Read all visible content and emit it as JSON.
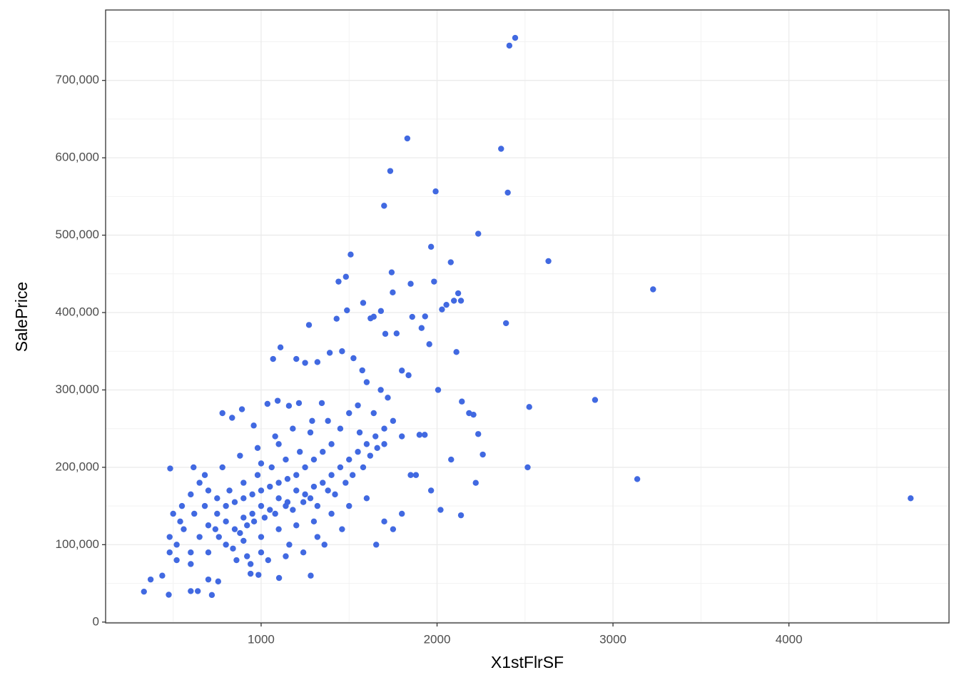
{
  "chart_data": {
    "type": "scatter",
    "x_label": "X1stFlrSF",
    "y_label": "SalePrice",
    "color": "#4169e1",
    "grid": true,
    "xlim": [
      116,
      4910
    ],
    "xticks": [
      1000,
      2000,
      3000,
      4000
    ],
    "xminorticks": [
      500,
      1500,
      2500,
      3500,
      4500
    ],
    "ylim": [
      -1105,
      791005
    ],
    "yticks": [
      0,
      {
        "value": 100000,
        "label": "100,000"
      },
      {
        "value": 200000,
        "label": "200,000"
      },
      {
        "value": 300000,
        "label": "300,000"
      },
      {
        "value": 400000,
        "label": "400,000"
      },
      {
        "value": 500000,
        "label": "500,000"
      },
      {
        "value": 600000,
        "label": "600,000"
      },
      {
        "value": 700000,
        "label": "700,000"
      }
    ],
    "yminorticks": [
      50000,
      150000,
      250000,
      350000,
      450000,
      550000,
      650000,
      750000
    ],
    "x": [
      2444,
      2411,
      1831,
      2364,
      1734,
      1992,
      2402,
      1699,
      2234,
      1509,
      2633,
      1966,
      2078,
      3228,
      1742,
      1482,
      1440,
      1983,
      1850,
      2120,
      1748,
      2096,
      2136,
      4692,
      3138,
      2898,
      2524,
      2515,
      2392,
      1488,
      1580,
      1681,
      1429,
      1640,
      1859,
      1272,
      2028,
      2053,
      1932,
      1912,
      1956,
      2207,
      2234,
      2260,
      2136,
      2020,
      2220,
      1966,
      2080,
      2141,
      2182,
      2110,
      2006,
      1838,
      1800,
      1770,
      1706,
      1622,
      1525,
      1575,
      1390,
      1110,
      1068,
      1200,
      1250,
      1320,
      1460,
      1654,
      1282,
      1102,
      985,
      940,
      720,
      475,
      334,
      372,
      438,
      600,
      640,
      700,
      756,
      483,
      616,
      780,
      835,
      891,
      958,
      1036,
      1094,
      1158,
      1215,
      1290,
      1345,
      520,
      560,
      600,
      650,
      700,
      750,
      800,
      850,
      900,
      950,
      1000,
      1050,
      1100,
      1150,
      1200,
      1250,
      1300,
      1350,
      1400,
      1450,
      1500,
      1550,
      1600,
      1650,
      1700,
      1750,
      1800,
      1850,
      1880,
      1900,
      1930,
      1550,
      1500,
      1450,
      1400,
      1350,
      1300,
      1250,
      1200,
      1150,
      1100,
      1050,
      1000,
      950,
      900,
      850,
      800,
      750,
      700,
      650,
      600,
      550,
      500,
      480,
      480,
      520,
      600,
      700,
      800,
      900,
      1000,
      1100,
      1200,
      1300,
      1400,
      1500,
      1600,
      1700,
      1750,
      1800,
      880,
      920,
      960,
      1020,
      1080,
      1140,
      1180,
      1240,
      1280,
      1320,
      1380,
      1420,
      1480,
      1520,
      1580,
      1620,
      1660,
      1700,
      1720,
      1680,
      1600,
      1640,
      1560,
      1380,
      1280,
      1180,
      1080,
      980,
      880,
      780,
      680,
      760,
      840,
      920,
      1000,
      1160,
      1320,
      1460,
      1240,
      1360,
      860,
      940,
      1040,
      1140,
      540,
      620,
      680,
      740,
      820,
      900,
      980,
      1060,
      1140,
      1220,
      1100,
      1000
    ],
    "values": [
      755000,
      745000,
      625000,
      611657,
      582933,
      556581,
      555000,
      538000,
      501837,
      475000,
      466500,
      485000,
      465000,
      430000,
      451950,
      446261,
      440000,
      440000,
      437154,
      424870,
      426000,
      415298,
      415298,
      160000,
      184750,
      287090,
      278000,
      200000,
      386250,
      402861,
      412500,
      402000,
      392000,
      394617,
      394432,
      383970,
      404000,
      410000,
      395000,
      380000,
      359100,
      268000,
      243000,
      216500,
      138000,
      145000,
      179900,
      170000,
      210000,
      285000,
      270000,
      349000,
      300000,
      319000,
      325000,
      373000,
      372500,
      392500,
      341000,
      325300,
      348000,
      355000,
      340000,
      340000,
      335000,
      336000,
      350000,
      100000,
      60000,
      57000,
      61000,
      62500,
      35000,
      35311,
      39300,
      55000,
      60000,
      40000,
      40000,
      55000,
      52500,
      198500,
      200000,
      270000,
      264000,
      275000,
      254000,
      282000,
      286000,
      279500,
      283000,
      260000,
      283000,
      100000,
      120000,
      90000,
      110000,
      125000,
      140000,
      130000,
      120000,
      135000,
      140000,
      150000,
      145000,
      160000,
      155000,
      170000,
      165000,
      175000,
      180000,
      190000,
      200000,
      210000,
      220000,
      230000,
      240000,
      250000,
      260000,
      240000,
      190000,
      190000,
      242000,
      242000,
      280000,
      270000,
      250000,
      230000,
      220000,
      210000,
      200000,
      190000,
      185000,
      180000,
      175000,
      170000,
      165000,
      160000,
      155000,
      150000,
      160000,
      170000,
      180000,
      165000,
      150000,
      140000,
      110000,
      90000,
      80000,
      75000,
      90000,
      100000,
      105000,
      110000,
      120000,
      125000,
      130000,
      140000,
      150000,
      160000,
      130000,
      120000,
      140000,
      115000,
      125000,
      130000,
      135000,
      140000,
      150000,
      145000,
      155000,
      160000,
      150000,
      170000,
      165000,
      180000,
      190000,
      200000,
      215000,
      225000,
      230000,
      290000,
      300000,
      310000,
      270000,
      245000,
      260000,
      245000,
      250000,
      240000,
      225000,
      215000,
      200000,
      190000,
      110000,
      95000,
      85000,
      90000,
      100000,
      110000,
      120000,
      90000,
      100000,
      80000,
      75000,
      80000,
      85000,
      130000,
      140000,
      150000,
      120000,
      170000,
      180000,
      190000,
      200000,
      210000,
      220000,
      230000,
      205000
    ]
  }
}
